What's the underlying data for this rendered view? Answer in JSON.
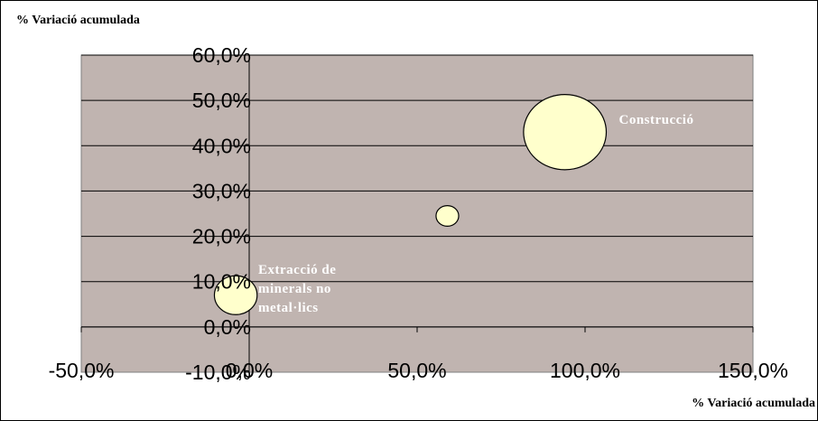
{
  "chart_data": {
    "type": "bubble",
    "xlabel": "% Variació  acumulada",
    "ylabel": "% Variació  acumulada",
    "xlim": [
      -50,
      150
    ],
    "ylim": [
      -10,
      60
    ],
    "x_ticks": [
      "-50,0%",
      "0,0%",
      "50,0%",
      "100,0%",
      "150,0%"
    ],
    "y_ticks": [
      "-10,0%",
      "0,0%",
      "10,0%",
      "20,0%",
      "30,0%",
      "40,0%",
      "50,0%",
      "60,0%"
    ],
    "grid": true,
    "colors": {
      "plot_bg": "#c0b4b0",
      "bubble_fill": "#ffffcc",
      "bubble_stroke": "#000000",
      "grid": "#000000",
      "label": "#ffffff"
    },
    "points": [
      {
        "x": -4,
        "y": 7,
        "size": 1.6,
        "label": "Extracció  de\nminerals no\nmetal·lics"
      },
      {
        "x": 59,
        "y": 24.5,
        "size": 0.45,
        "label": ""
      },
      {
        "x": 94,
        "y": 43,
        "size": 6.0,
        "label": "Construcció"
      }
    ]
  }
}
